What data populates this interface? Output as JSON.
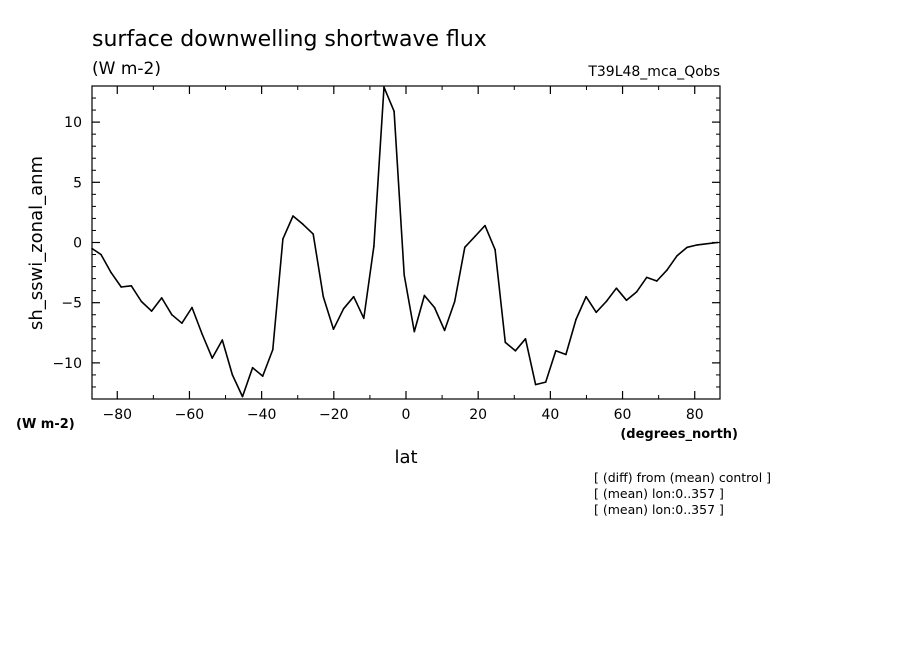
{
  "chart_data": {
    "type": "line",
    "title": "surface downwelling shortwave flux",
    "subtitle": "(W m-2)",
    "experiment": "T39L48_mca_Qobs",
    "ylabel": "sh_sswi_zonal_anm",
    "xlabel": "lat",
    "x_units": "(degrees_north)",
    "y_units": "(W m-2)",
    "xlim": [
      -87,
      87
    ],
    "ylim": [
      -13,
      13
    ],
    "x_ticks": [
      -80,
      -60,
      -40,
      -20,
      0,
      20,
      40,
      60,
      80
    ],
    "x_tick_labels": [
      "−80",
      "−60",
      "−40",
      "−20",
      "0",
      "20",
      "40",
      "60",
      "80"
    ],
    "y_ticks": [
      -10,
      -5,
      0,
      5,
      10
    ],
    "y_tick_labels": [
      "−10",
      "−5",
      "0",
      "5",
      "10"
    ],
    "grid": false,
    "series": [
      {
        "x": [
          -87,
          -84.5,
          -81.7,
          -78.9,
          -76.1,
          -73.3,
          -70.5,
          -67.7,
          -64.9,
          -62.1,
          -59.3,
          -56.5,
          -53.7,
          -50.9,
          -48.1,
          -45.3,
          -42.5,
          -39.7,
          -36.9,
          -34.1,
          -31.3,
          -28.5,
          -25.7,
          -22.9,
          -20.1,
          -17.3,
          -14.5,
          -11.7,
          -8.9,
          -6.1,
          -3.3,
          -0.5,
          2.3,
          5.1,
          7.9,
          10.7,
          13.5,
          16.3,
          19.1,
          21.9,
          24.7,
          27.5,
          30.3,
          33.1,
          35.9,
          38.7,
          41.5,
          44.3,
          47.1,
          49.9,
          52.7,
          55.5,
          58.3,
          61.1,
          63.9,
          66.7,
          69.5,
          72.3,
          75.1,
          77.9,
          80.7,
          83.5,
          86.3
        ],
        "y": [
          -0.5,
          -1.0,
          -2.5,
          -3.7,
          -3.6,
          -4.9,
          -5.7,
          -4.6,
          -6.0,
          -6.7,
          -5.4,
          -7.6,
          -9.6,
          -8.1,
          -11.0,
          -12.8,
          -10.4,
          -11.1,
          -8.9,
          0.3,
          2.2,
          1.5,
          0.7,
          -4.5,
          -7.2,
          -5.5,
          -4.5,
          -6.3,
          -0.3,
          12.9,
          10.9,
          -2.7,
          -7.4,
          -4.4,
          -5.4,
          -7.3,
          -4.9,
          -0.4,
          0.5,
          1.4,
          -0.6,
          -8.3,
          -9.0,
          -8.0,
          -11.8,
          -11.6,
          -9.0,
          -9.3,
          -6.4,
          -4.5,
          -5.8,
          -4.9,
          -3.8,
          -4.8,
          -4.1,
          -2.9,
          -3.2,
          -2.3,
          -1.1,
          -0.4,
          -0.2,
          -0.1,
          0.0
        ]
      }
    ]
  },
  "notes": [
    "[ (diff) from (mean) control ]",
    "[ (mean) lon:0..357 ]",
    "[ (mean) lon:0..357 ]"
  ]
}
